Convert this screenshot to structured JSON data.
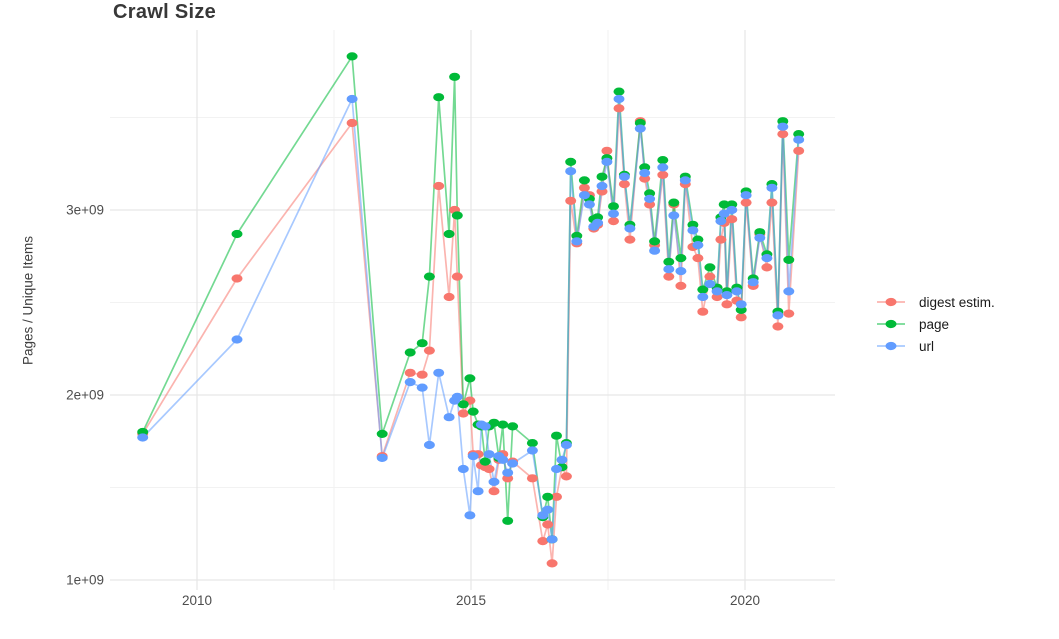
{
  "title": "Crawl Size",
  "chart_data": {
    "type": "line",
    "title": "Crawl Size",
    "xlabel": "",
    "ylabel": "Pages / Unique Items",
    "y_unit": "items (value x 1e9)",
    "x_unit": "year (decimal)",
    "xlim": [
      2008.4,
      2021.6
    ],
    "ylim": [
      0.95,
      3.97
    ],
    "grid": true,
    "legend_position": "right",
    "x_ticks": [
      {
        "value": 2010,
        "label": "2010"
      },
      {
        "value": 2015,
        "label": "2015"
      },
      {
        "value": 2020,
        "label": "2020"
      }
    ],
    "y_ticks": [
      {
        "value": 1,
        "label": "1e+09"
      },
      {
        "value": 2,
        "label": "2e+09"
      },
      {
        "value": 3,
        "label": "3e+09"
      }
    ],
    "x_minor_ticks": [
      2012.5,
      2017.5
    ],
    "y_minor_ticks": [
      1.5,
      2.5,
      3.5
    ],
    "x": [
      2009.01,
      2010.73,
      2012.83,
      2013.38,
      2013.89,
      2014.11,
      2014.24,
      2014.41,
      2014.6,
      2014.7,
      2014.75,
      2014.86,
      2014.98,
      2015.04,
      2015.13,
      2015.19,
      2015.26,
      2015.33,
      2015.42,
      2015.51,
      2015.58,
      2015.67,
      2015.76,
      2016.12,
      2016.31,
      2016.4,
      2016.48,
      2016.56,
      2016.66,
      2016.74,
      2016.82,
      2016.93,
      2017.07,
      2017.16,
      2017.24,
      2017.31,
      2017.39,
      2017.48,
      2017.6,
      2017.7,
      2017.8,
      2017.9,
      2018.09,
      2018.17,
      2018.26,
      2018.35,
      2018.5,
      2018.61,
      2018.7,
      2018.83,
      2018.91,
      2019.05,
      2019.14,
      2019.23,
      2019.36,
      2019.49,
      2019.56,
      2019.62,
      2019.67,
      2019.76,
      2019.85,
      2019.93,
      2020.02,
      2020.15,
      2020.27,
      2020.4,
      2020.49,
      2020.6,
      2020.69,
      2020.8,
      2020.98
    ],
    "series": [
      {
        "name": "digest estim.",
        "color": "#F8766D",
        "values": [
          1.79,
          2.63,
          3.47,
          1.67,
          2.12,
          2.11,
          2.24,
          3.13,
          2.53,
          3.0,
          2.64,
          1.9,
          1.97,
          1.68,
          1.68,
          1.62,
          1.61,
          1.6,
          1.48,
          1.65,
          1.68,
          1.55,
          1.64,
          1.55,
          1.21,
          1.3,
          1.09,
          1.45,
          1.61,
          1.56,
          3.05,
          2.82,
          3.12,
          3.08,
          2.9,
          2.92,
          3.1,
          3.32,
          2.94,
          3.55,
          3.14,
          2.84,
          3.48,
          3.17,
          3.03,
          2.81,
          3.19,
          2.64,
          3.03,
          2.59,
          3.14,
          2.8,
          2.74,
          2.45,
          2.64,
          2.53,
          2.84,
          2.93,
          2.49,
          2.95,
          2.51,
          2.42,
          3.04,
          2.59,
          2.87,
          2.69,
          3.04,
          2.37,
          3.41,
          2.44,
          3.32
        ]
      },
      {
        "name": "page",
        "color": "#00BA38",
        "values": [
          1.8,
          2.87,
          3.83,
          1.79,
          2.23,
          2.28,
          2.64,
          3.61,
          2.87,
          3.72,
          2.97,
          1.95,
          2.09,
          1.91,
          1.84,
          1.83,
          1.64,
          1.83,
          1.85,
          1.66,
          1.84,
          1.32,
          1.83,
          1.74,
          1.34,
          1.45,
          1.22,
          1.78,
          1.61,
          1.74,
          3.26,
          2.86,
          3.16,
          3.06,
          2.95,
          2.96,
          3.18,
          3.28,
          3.02,
          3.64,
          3.19,
          2.92,
          3.47,
          3.23,
          3.09,
          2.83,
          3.27,
          2.72,
          3.04,
          2.74,
          3.18,
          2.92,
          2.84,
          2.57,
          2.69,
          2.58,
          2.96,
          3.03,
          2.56,
          3.03,
          2.58,
          2.46,
          3.1,
          2.63,
          2.88,
          2.76,
          3.14,
          2.45,
          3.48,
          2.73,
          3.41
        ]
      },
      {
        "name": "url",
        "color": "#619CFF",
        "values": [
          1.77,
          2.3,
          3.6,
          1.66,
          2.07,
          2.04,
          1.73,
          2.12,
          1.88,
          1.97,
          1.99,
          1.6,
          1.35,
          1.67,
          1.48,
          1.84,
          1.83,
          1.68,
          1.53,
          1.67,
          1.65,
          1.58,
          1.63,
          1.7,
          1.35,
          1.38,
          1.22,
          1.6,
          1.65,
          1.73,
          3.21,
          2.83,
          3.08,
          3.03,
          2.91,
          2.93,
          3.13,
          3.26,
          2.98,
          3.6,
          3.18,
          2.9,
          3.44,
          3.2,
          3.06,
          2.78,
          3.23,
          2.68,
          2.97,
          2.67,
          3.16,
          2.89,
          2.81,
          2.53,
          2.6,
          2.56,
          2.94,
          2.98,
          2.54,
          3.0,
          2.56,
          2.49,
          3.08,
          2.61,
          2.85,
          2.74,
          3.12,
          2.43,
          3.45,
          2.56,
          3.38
        ]
      }
    ]
  },
  "legend": {
    "items": [
      {
        "label": "digest estim.",
        "color": "#F8766D"
      },
      {
        "label": "page",
        "color": "#00BA38"
      },
      {
        "label": "url",
        "color": "#619CFF"
      }
    ]
  },
  "style": {
    "grid_major_color": "#e6e6e6",
    "grid_minor_color": "#f2f2f2",
    "line_opacity": 0.55,
    "background": "#ffffff"
  }
}
